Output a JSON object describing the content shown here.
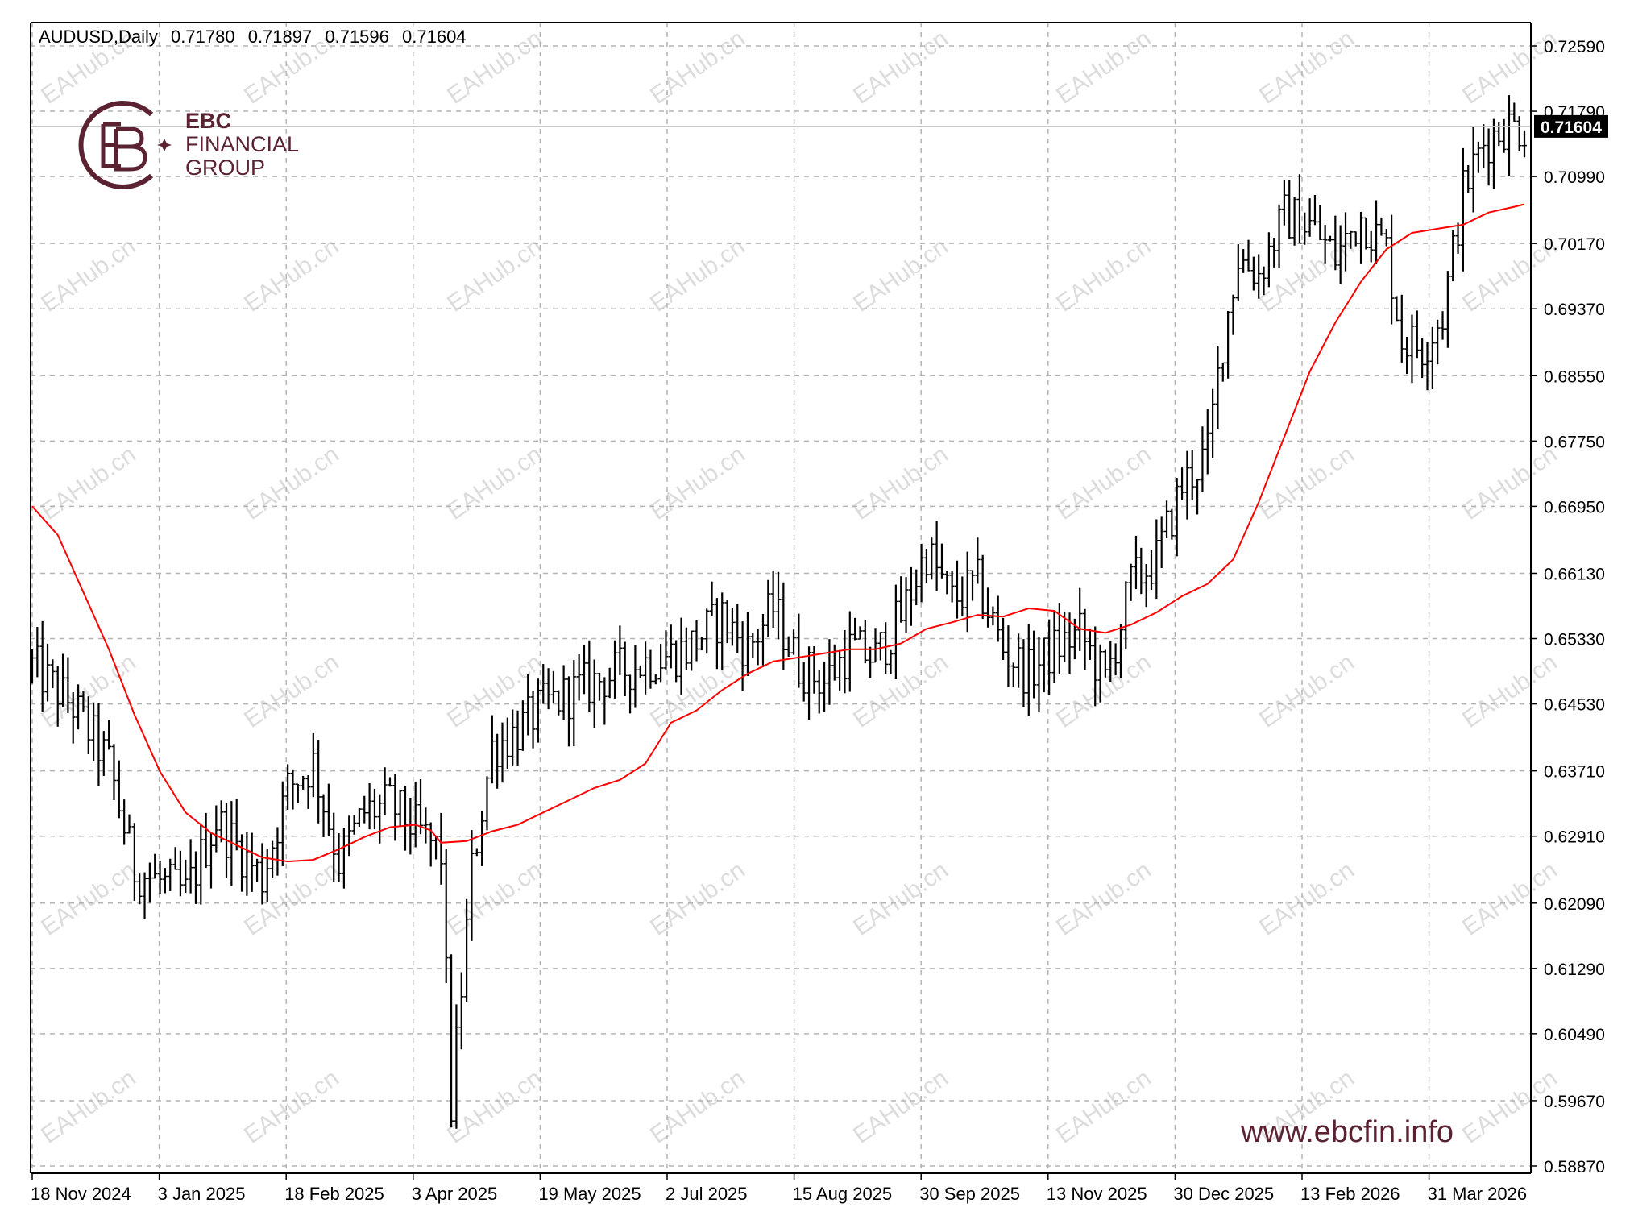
{
  "header": {
    "symbol": "AUDUSD,Daily",
    "open": "0.71780",
    "high": "0.71897",
    "low": "0.71596",
    "close": "0.71604"
  },
  "logo": {
    "brand": "EBC",
    "line2": "FINANCIAL",
    "line3": "GROUP"
  },
  "watermark_text": "EAHub.cn",
  "website": "www.ebcfin.info",
  "current_price_label": "0.71604",
  "colors": {
    "bars": "#000000",
    "moving_average": "#ff0000",
    "grid": "#b4b4b4",
    "price_tag_bg": "#000000",
    "brand": "#5b2331",
    "watermark": "#dcdcdc"
  },
  "chart_data": {
    "type": "ohlc",
    "grid": true,
    "price_scale_side": "right",
    "current_price": 0.71604,
    "ylim": [
      0.5887,
      0.7259
    ],
    "y_ticks": [
      "0.72590",
      "0.71790",
      "0.70990",
      "0.70170",
      "0.69370",
      "0.68550",
      "0.67750",
      "0.66950",
      "0.66130",
      "0.65330",
      "0.64530",
      "0.63710",
      "0.62910",
      "0.62090",
      "0.61290",
      "0.60490",
      "0.59670",
      "0.58870"
    ],
    "x_labels": [
      "18 Nov 2024",
      "3 Jan 2025",
      "18 Feb 2025",
      "3 Apr 2025",
      "19 May 2025",
      "2 Jul 2025",
      "15 Aug 2025",
      "30 Sep 2025",
      "13 Nov 2025",
      "30 Dec 2025",
      "13 Feb 2026",
      "31 Mar 2026"
    ],
    "series": [
      {
        "kind": "price_bars",
        "anchors": [
          [
            0,
            0.65
          ],
          [
            8,
            0.645
          ],
          [
            15,
            0.638
          ],
          [
            20,
            0.625
          ],
          [
            30,
            0.622
          ],
          [
            36,
            0.631
          ],
          [
            45,
            0.624
          ],
          [
            50,
            0.635
          ],
          [
            55,
            0.638
          ],
          [
            60,
            0.626
          ],
          [
            65,
            0.632
          ],
          [
            70,
            0.633
          ],
          [
            75,
            0.63
          ],
          [
            80,
            0.627
          ],
          [
            82,
            0.596
          ],
          [
            86,
            0.625
          ],
          [
            90,
            0.64
          ],
          [
            95,
            0.642
          ],
          [
            100,
            0.645
          ],
          [
            110,
            0.648
          ],
          [
            118,
            0.65
          ],
          [
            128,
            0.652
          ],
          [
            135,
            0.656
          ],
          [
            140,
            0.652
          ],
          [
            145,
            0.657
          ],
          [
            150,
            0.65
          ],
          [
            155,
            0.648
          ],
          [
            160,
            0.652
          ],
          [
            165,
            0.651
          ],
          [
            170,
            0.656
          ],
          [
            175,
            0.664
          ],
          [
            180,
            0.658
          ],
          [
            185,
            0.66
          ],
          [
            190,
            0.652
          ],
          [
            195,
            0.649
          ],
          [
            200,
            0.652
          ],
          [
            205,
            0.654
          ],
          [
            210,
            0.648
          ],
          [
            215,
            0.66
          ],
          [
            220,
            0.663
          ],
          [
            225,
            0.672
          ],
          [
            230,
            0.676
          ],
          [
            233,
            0.69
          ],
          [
            236,
            0.7
          ],
          [
            240,
            0.698
          ],
          [
            245,
            0.705
          ],
          [
            250,
            0.704
          ],
          [
            255,
            0.7
          ],
          [
            260,
            0.705
          ],
          [
            265,
            0.701
          ],
          [
            268,
            0.69
          ],
          [
            272,
            0.689
          ],
          [
            276,
            0.693
          ],
          [
            280,
            0.708
          ],
          [
            284,
            0.714
          ],
          [
            288,
            0.716
          ],
          [
            292,
            0.716
          ]
        ]
      },
      {
        "kind": "moving_average",
        "points": [
          [
            0,
            0.6695
          ],
          [
            5,
            0.666
          ],
          [
            10,
            0.659
          ],
          [
            15,
            0.652
          ],
          [
            20,
            0.644
          ],
          [
            25,
            0.637
          ],
          [
            30,
            0.632
          ],
          [
            35,
            0.6295
          ],
          [
            40,
            0.628
          ],
          [
            45,
            0.6265
          ],
          [
            50,
            0.626
          ],
          [
            55,
            0.6262
          ],
          [
            60,
            0.6275
          ],
          [
            65,
            0.629
          ],
          [
            70,
            0.6302
          ],
          [
            75,
            0.6305
          ],
          [
            78,
            0.6298
          ],
          [
            80,
            0.6283
          ],
          [
            85,
            0.6285
          ],
          [
            90,
            0.6297
          ],
          [
            95,
            0.6305
          ],
          [
            100,
            0.632
          ],
          [
            105,
            0.6335
          ],
          [
            110,
            0.635
          ],
          [
            115,
            0.636
          ],
          [
            120,
            0.638
          ],
          [
            125,
            0.643
          ],
          [
            130,
            0.6445
          ],
          [
            135,
            0.647
          ],
          [
            140,
            0.649
          ],
          [
            145,
            0.6505
          ],
          [
            150,
            0.651
          ],
          [
            155,
            0.6515
          ],
          [
            160,
            0.652
          ],
          [
            165,
            0.652
          ],
          [
            170,
            0.6527
          ],
          [
            175,
            0.6545
          ],
          [
            180,
            0.6553
          ],
          [
            185,
            0.6562
          ],
          [
            190,
            0.656
          ],
          [
            195,
            0.657
          ],
          [
            200,
            0.6567
          ],
          [
            205,
            0.6545
          ],
          [
            210,
            0.654
          ],
          [
            215,
            0.655
          ],
          [
            220,
            0.6565
          ],
          [
            225,
            0.6585
          ],
          [
            230,
            0.66
          ],
          [
            235,
            0.663
          ],
          [
            240,
            0.67
          ],
          [
            245,
            0.678
          ],
          [
            250,
            0.686
          ],
          [
            255,
            0.692
          ],
          [
            260,
            0.697
          ],
          [
            265,
            0.701
          ],
          [
            270,
            0.703
          ],
          [
            275,
            0.7035
          ],
          [
            280,
            0.704
          ],
          [
            285,
            0.7055
          ],
          [
            290,
            0.7062
          ],
          [
            292,
            0.7065
          ]
        ]
      }
    ]
  }
}
